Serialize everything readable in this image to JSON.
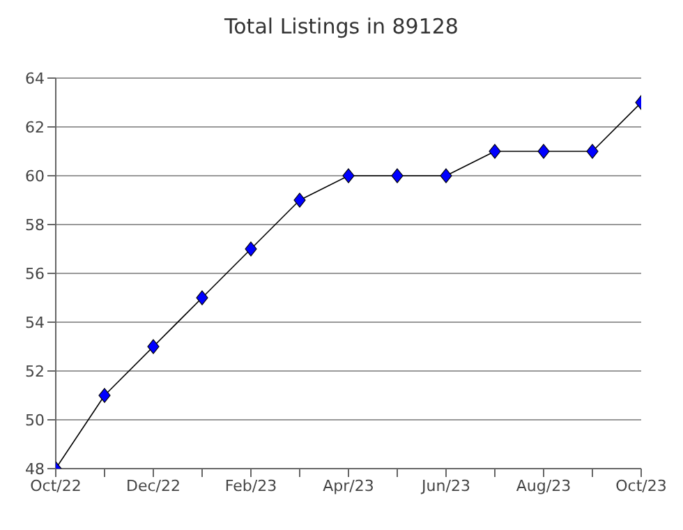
{
  "chart_data": {
    "type": "line",
    "title": "Total Listings in 89128",
    "categories": [
      "Oct/22",
      null,
      "Dec/22",
      null,
      "Feb/23",
      null,
      "Apr/23",
      null,
      "Jun/23",
      null,
      "Aug/23",
      null,
      "Oct/23"
    ],
    "series": [
      {
        "color": "#0000ff",
        "values": [
          48,
          51,
          53,
          55,
          57,
          59,
          60,
          60,
          60,
          61,
          61,
          61,
          63
        ]
      }
    ],
    "ylim": [
      48,
      64
    ],
    "yticks": [
      48,
      50,
      52,
      54,
      56,
      58,
      60,
      62,
      64
    ],
    "grid": "y",
    "marker": "diamond",
    "line_style": "solid"
  }
}
